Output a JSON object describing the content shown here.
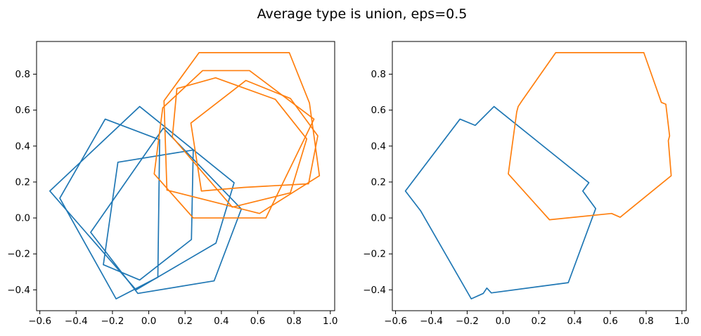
{
  "figure": {
    "title": "Average type is union, eps=0.5",
    "background": "#ffffff"
  },
  "colors": {
    "blue": "#1f77b4",
    "orange": "#ff7f0e",
    "spine": "#000000",
    "tick_label": "#000000"
  },
  "chart_data": [
    {
      "type": "line",
      "subplot": "left",
      "description": "input noisy polygons: 4 blue pentagons and 4 orange heptagons",
      "xlim": [
        -0.618,
        1.024
      ],
      "ylim": [
        -0.516,
        0.982
      ],
      "grid": false,
      "legend": null,
      "xticks": {
        "values": [
          -0.6,
          -0.4,
          -0.2,
          0.0,
          0.2,
          0.4,
          0.6,
          0.8,
          1.0
        ],
        "labels": [
          "−0.6",
          "−0.4",
          "−0.2",
          "0.0",
          "0.2",
          "0.4",
          "0.6",
          "0.8",
          "1.0"
        ]
      },
      "yticks": {
        "values": [
          -0.4,
          -0.2,
          0.0,
          0.2,
          0.4,
          0.6,
          0.8
        ],
        "labels": [
          "−0.4",
          "−0.2",
          "0.0",
          "0.2",
          "0.4",
          "0.6",
          "0.8"
        ]
      },
      "series": [
        {
          "name": "blue-pentagon-1",
          "color_key": "blue",
          "closed": true,
          "points": [
            [
              -0.05,
              0.62
            ],
            [
              0.47,
              0.196
            ],
            [
              0.37,
              -0.14
            ],
            [
              -0.07,
              -0.4
            ],
            [
              -0.545,
              0.15
            ]
          ]
        },
        {
          "name": "blue-pentagon-2",
          "color_key": "blue",
          "closed": true,
          "points": [
            [
              0.08,
              0.5
            ],
            [
              0.51,
              0.05
            ],
            [
              0.36,
              -0.35
            ],
            [
              -0.06,
              -0.42
            ],
            [
              -0.32,
              -0.08
            ]
          ]
        },
        {
          "name": "blue-pentagon-3",
          "color_key": "blue",
          "closed": true,
          "points": [
            [
              -0.24,
              0.55
            ],
            [
              0.06,
              0.435
            ],
            [
              0.05,
              -0.33
            ],
            [
              -0.18,
              -0.45
            ],
            [
              -0.49,
              0.11
            ]
          ]
        },
        {
          "name": "blue-pentagon-4",
          "color_key": "blue",
          "closed": true,
          "points": [
            [
              -0.17,
              0.31
            ],
            [
              0.245,
              0.378
            ],
            [
              0.235,
              -0.12
            ],
            [
              -0.05,
              -0.345
            ],
            [
              -0.25,
              -0.26
            ]
          ]
        },
        {
          "name": "orange-heptagon-1",
          "color_key": "orange",
          "closed": true,
          "points": [
            [
              0.084,
              0.652
            ],
            [
              0.277,
              0.92
            ],
            [
              0.774,
              0.92
            ],
            [
              0.885,
              0.64
            ],
            [
              0.94,
              0.235
            ],
            [
              0.61,
              0.025
            ],
            [
              0.1,
              0.155
            ]
          ]
        },
        {
          "name": "orange-heptagon-2",
          "color_key": "orange",
          "closed": true,
          "points": [
            [
              0.077,
              0.613
            ],
            [
              0.297,
              0.82
            ],
            [
              0.555,
              0.82
            ],
            [
              0.91,
              0.55
            ],
            [
              0.645,
              0.0
            ],
            [
              0.245,
              0.0
            ],
            [
              0.03,
              0.245
            ]
          ]
        },
        {
          "name": "orange-heptagon-3",
          "color_key": "orange",
          "closed": true,
          "points": [
            [
              0.155,
              0.72
            ],
            [
              0.368,
              0.78
            ],
            [
              0.697,
              0.66
            ],
            [
              0.87,
              0.44
            ],
            [
              0.78,
              0.14
            ],
            [
              0.46,
              0.06
            ],
            [
              0.13,
              0.45
            ]
          ]
        },
        {
          "name": "orange-heptagon-4",
          "color_key": "orange",
          "closed": true,
          "points": [
            [
              0.232,
              0.528
            ],
            [
              0.535,
              0.765
            ],
            [
              0.78,
              0.665
            ],
            [
              0.931,
              0.457
            ],
            [
              0.88,
              0.19
            ],
            [
              0.523,
              0.17
            ],
            [
              0.29,
              0.15
            ]
          ]
        }
      ]
    },
    {
      "type": "line",
      "subplot": "right",
      "description": "union average outlines of the blue and orange polygon sets",
      "xlim": [
        -0.618,
        1.024
      ],
      "ylim": [
        -0.516,
        0.982
      ],
      "grid": false,
      "legend": null,
      "xticks": {
        "values": [
          -0.6,
          -0.4,
          -0.2,
          0.0,
          0.2,
          0.4,
          0.6,
          0.8,
          1.0
        ],
        "labels": [
          "−0.6",
          "−0.4",
          "−0.2",
          "0.0",
          "0.2",
          "0.4",
          "0.6",
          "0.8",
          "1.0"
        ]
      },
      "yticks": {
        "values": [
          -0.4,
          -0.2,
          0.0,
          0.2,
          0.4,
          0.6,
          0.8
        ],
        "labels": [
          "−0.4",
          "−0.2",
          "0.0",
          "0.2",
          "0.4",
          "0.6",
          "0.8"
        ]
      },
      "series": [
        {
          "name": "blue-union-outline",
          "color_key": "blue",
          "closed": true,
          "points": [
            [
              -0.545,
              0.15
            ],
            [
              -0.24,
              0.55
            ],
            [
              -0.155,
              0.515
            ],
            [
              -0.05,
              0.62
            ],
            [
              0.48,
              0.196
            ],
            [
              0.446,
              0.15
            ],
            [
              0.518,
              0.052
            ],
            [
              0.365,
              -0.36
            ],
            [
              -0.065,
              -0.417
            ],
            [
              -0.09,
              -0.39
            ],
            [
              -0.11,
              -0.42
            ],
            [
              -0.177,
              -0.45
            ],
            [
              -0.46,
              0.04
            ]
          ]
        },
        {
          "name": "orange-union-outline",
          "color_key": "orange",
          "closed": true,
          "points": [
            [
              0.295,
              0.92
            ],
            [
              0.787,
              0.92
            ],
            [
              0.885,
              0.643
            ],
            [
              0.91,
              0.633
            ],
            [
              0.931,
              0.457
            ],
            [
              0.924,
              0.43
            ],
            [
              0.94,
              0.235
            ],
            [
              0.655,
              0.004
            ],
            [
              0.607,
              0.025
            ],
            [
              0.26,
              -0.01
            ],
            [
              0.03,
              0.245
            ],
            [
              0.077,
              0.59
            ],
            [
              0.085,
              0.62
            ],
            [
              0.105,
              0.65
            ]
          ]
        }
      ]
    }
  ]
}
